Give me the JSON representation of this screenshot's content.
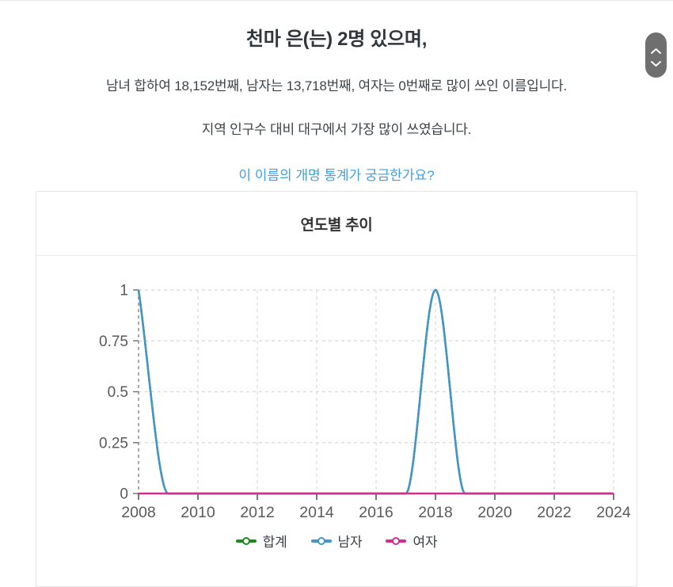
{
  "page": {
    "title": "천마 은(는) 2명 있으며,",
    "subtitle1": "남녀 합하여 18,152번째, 남자는 13,718번째, 여자는 0번째로 많이 쓰인 이름입니다.",
    "subtitle2": "지역 인구수 대비 대구에서 가장 많이 쓰였습니다.",
    "link_label": "이 이름의 개명 통계가 궁금한가요?",
    "link_color": "#3f9fe3"
  },
  "scroll_widget": {
    "up_icon": "chevron-up",
    "down_icon": "chevron-down",
    "background": "#6f6f6f"
  },
  "card": {
    "title": "연도별 추이"
  },
  "chart_data": {
    "type": "line",
    "title": "연도별 추이",
    "x": [
      2008,
      2009,
      2010,
      2011,
      2012,
      2013,
      2014,
      2015,
      2016,
      2017,
      2018,
      2019,
      2020,
      2021,
      2022,
      2023,
      2024
    ],
    "x_ticks": [
      2008,
      2010,
      2012,
      2014,
      2016,
      2018,
      2020,
      2022,
      2024
    ],
    "y_ticks": [
      "0",
      "0.25",
      "0.5",
      "0.75",
      "1"
    ],
    "y_tick_values": [
      0,
      0.25,
      0.5,
      0.75,
      1
    ],
    "ylim": [
      0,
      1
    ],
    "grid": true,
    "interpolation": "monotone",
    "legend_position": "bottom",
    "series": [
      {
        "name": "합계",
        "color": "#1d8a1d",
        "values": [
          1,
          0,
          0,
          0,
          0,
          0,
          0,
          0,
          0,
          0,
          1,
          0,
          0,
          0,
          0,
          0,
          0
        ]
      },
      {
        "name": "남자",
        "color": "#4595c9",
        "values": [
          1,
          0,
          0,
          0,
          0,
          0,
          0,
          0,
          0,
          0,
          1,
          0,
          0,
          0,
          0,
          0,
          0
        ]
      },
      {
        "name": "여자",
        "color": "#d02f8f",
        "values": [
          0,
          0,
          0,
          0,
          0,
          0,
          0,
          0,
          0,
          0,
          0,
          0,
          0,
          0,
          0,
          0,
          0
        ]
      }
    ],
    "style": {
      "grid_color": "#d8d8d8",
      "yaxis_color": "#8c8c8c",
      "xaxis_color": "#4a4a4a",
      "tick_label_color": "#5a5a5a"
    }
  }
}
